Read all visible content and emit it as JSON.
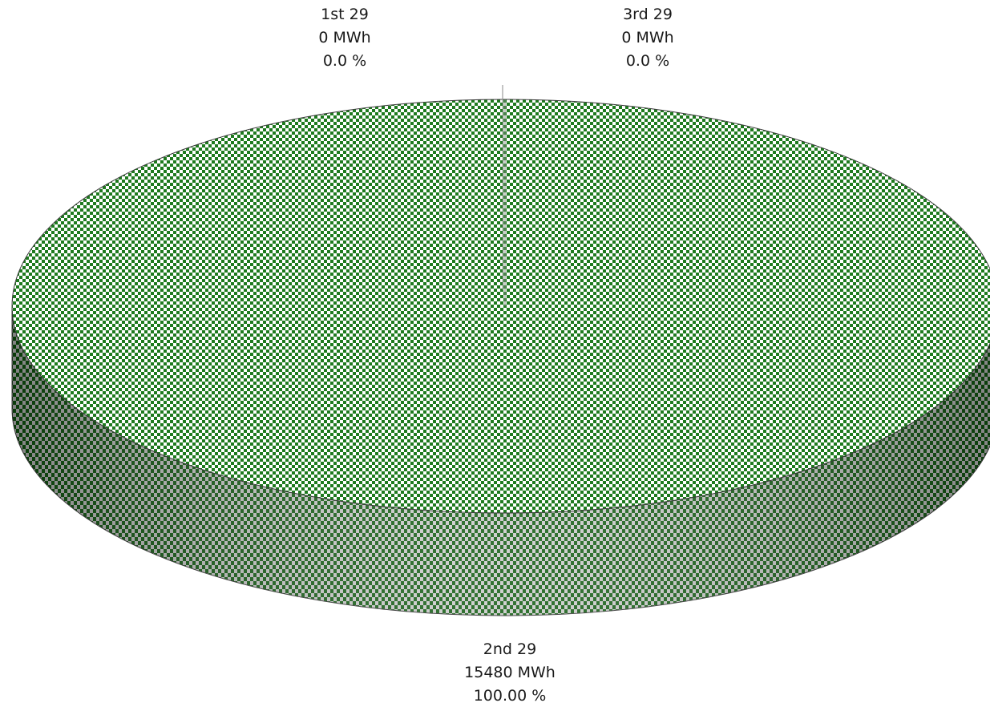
{
  "chart_data": {
    "type": "pie",
    "style": "3d",
    "title": "",
    "unit": "MWh",
    "colors": {
      "fill_dark": "#1e7a1e",
      "fill_light": "#ffffff",
      "side_dark": "#0f5a0f",
      "side_light": "#c8c8c8",
      "edge": "#3a3a3a"
    },
    "slices": [
      {
        "name": "1st 29",
        "value": 0,
        "value_label": "0 MWh",
        "percent": 0.0,
        "percent_label": "0.0 %"
      },
      {
        "name": "2nd 29",
        "value": 15480,
        "value_label": "15480 MWh",
        "percent": 100.0,
        "percent_label": "100.00 %"
      },
      {
        "name": "3rd 29",
        "value": 0,
        "value_label": "0 MWh",
        "percent": 0.0,
        "percent_label": "0.0 %"
      }
    ]
  }
}
